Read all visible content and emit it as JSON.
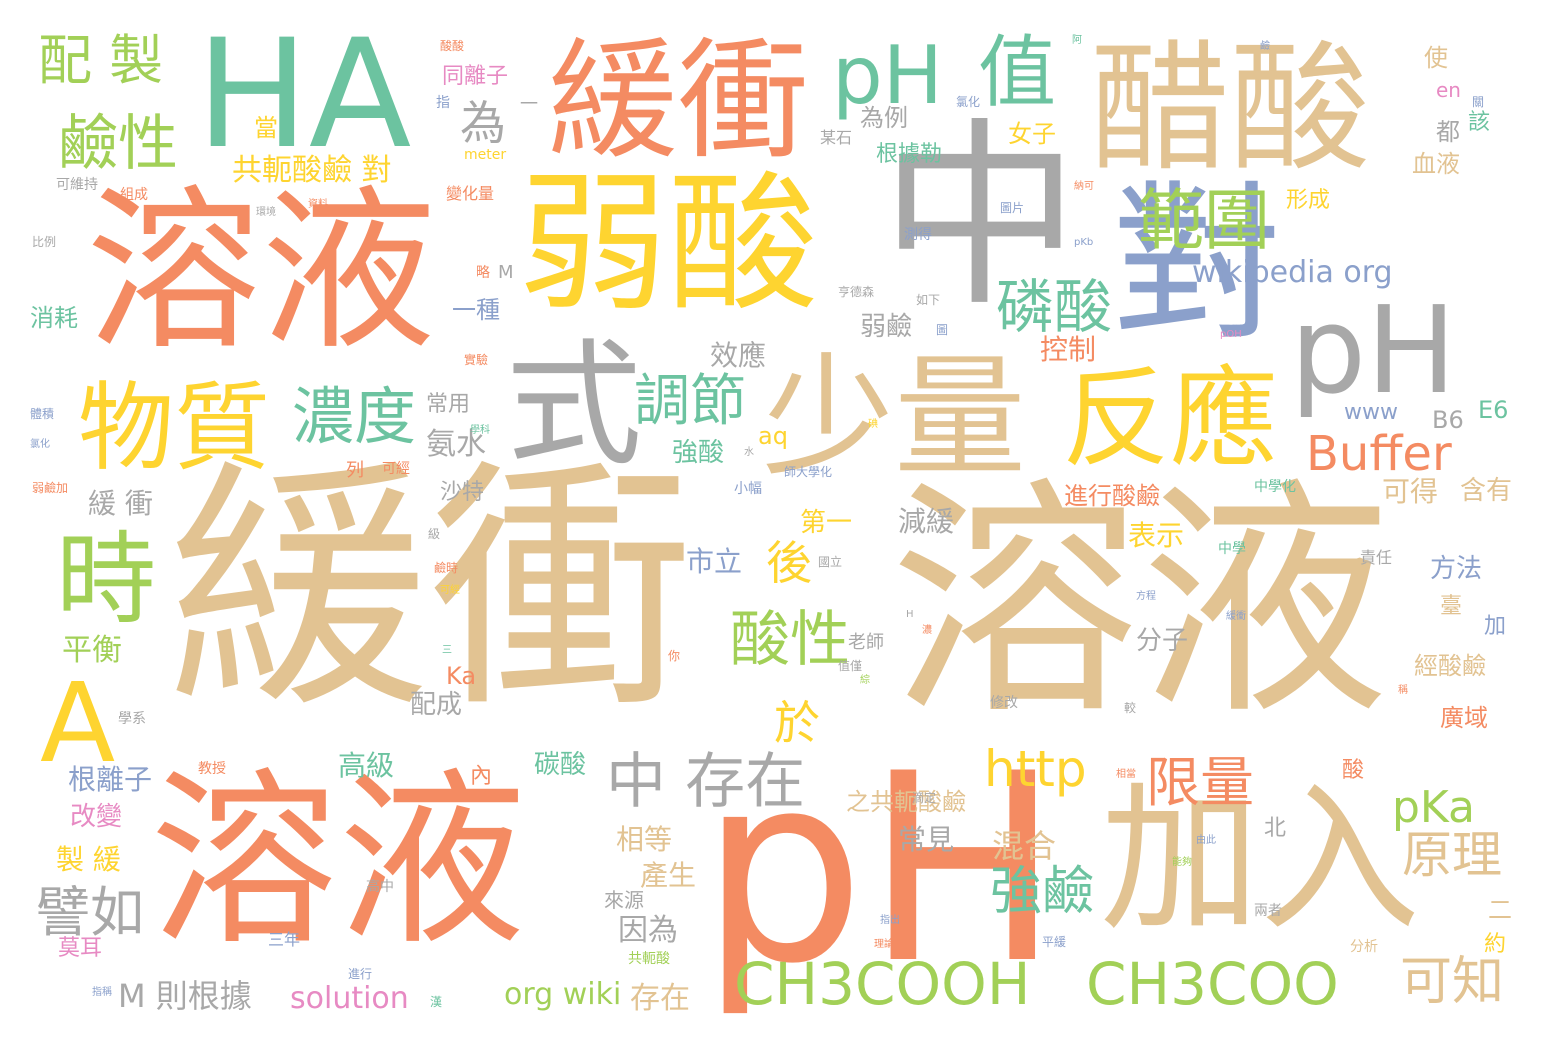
{
  "palette": {
    "orange": "#f48b62",
    "tan": "#e2c392",
    "gray": "#a8a8a8",
    "green": "#a2d057",
    "yellow": "#fed430",
    "teal": "#6cc3a0",
    "blue": "#8ba0cb",
    "pink": "#e78ac3"
  },
  "words": {
    "w0": "緩衝",
    "w1": "溶液",
    "w2": "中",
    "w3": "pH",
    "w4": "溶液",
    "w5": "溶液",
    "w6": "弱酸",
    "w7": "HA",
    "w8": "緩衝",
    "w9": "對",
    "w10": "醋酸",
    "w11": "加入",
    "w12": "少量",
    "w13": "反應",
    "w14": "pH",
    "w15": "式",
    "w16": "物質",
    "w17": "時",
    "w18": "A",
    "w19": "pH",
    "w20": "值",
    "w21": "範圍",
    "w22": "CH3COOH",
    "w23": "CH3COO",
    "w24": "配 製",
    "w25": "鹼性",
    "w26": "濃度",
    "w27": "磷酸",
    "w28": "調節",
    "w29": "酸性",
    "w30": "中 存在",
    "w31": "Buffer",
    "w32": "http",
    "w33": "pKa",
    "w34": "原理",
    "w35": "限量",
    "w36": "譬如",
    "w37": "強鹼",
    "w38": "可知",
    "w39": "後",
    "w40": "於",
    "w41": "為",
    "w42": "共軛酸鹼 對",
    "w43": "wikipedia org",
    "w44": "solution",
    "w45": "org wiki",
    "w46": "M 則根據",
    "w47": "存在",
    "w48": "混合",
    "w49": "平衡",
    "w50": "氨水",
    "w51": "緩 衝",
    "w52": "根離子",
    "w53": "改變",
    "w54": "製 緩",
    "w55": "高級",
    "w56": "配成",
    "w57": "Ka",
    "w58": "因為",
    "w59": "常見",
    "w60": "相等",
    "w61": "產生",
    "w62": "減緩",
    "w63": "碳酸",
    "w64": "市立",
    "w65": "第一",
    "w66": "強酸",
    "w67": "效應",
    "w68": "弱鹼",
    "w69": "控制",
    "w70": "可得",
    "w71": "含有",
    "w72": "方法",
    "w73": "分子",
    "w74": "表示",
    "w75": "經酸鹼",
    "w76": "廣域",
    "w77": "進行酸鹼",
    "w78": "之共軛酸鹼",
    "w79": "www",
    "w80": "B6",
    "w81": "E6",
    "w82": "aq",
    "w83": "一種",
    "w84": "消耗",
    "w85": "同離子",
    "w86": "為例",
    "w87": "根據勒",
    "w88": "女子",
    "w89": "血液",
    "w90": "都",
    "w91": "該",
    "w92": "使",
    "w93": "en",
    "w94": "當",
    "w95": "形成",
    "w96": "常用",
    "w97": "沙特",
    "w98": "內",
    "w99": "酸",
    "w100": "北",
    "w101": "二",
    "w102": "約",
    "w103": "臺",
    "w104": "加",
    "w105": "來源",
    "w106": "莫耳",
    "w107": "三年",
    "w108": "列",
    "w109": "老師",
    "w110": "某石",
    "w111": "meter",
    "w112": "可維持",
    "w113": "變化量",
    "w114": "組成",
    "w115": "比例",
    "w116": "M",
    "w117": "略",
    "w118": "一",
    "w119": "指",
    "w120": "可經",
    "w121": "高中",
    "w122": "共軛酸",
    "w123": "小幅",
    "w124": "中學化",
    "w125": "中學",
    "w126": "責任",
    "w127": "教授",
    "w128": "修改",
    "w129": "兩者",
    "w130": "分析",
    "w131": "進行",
    "w132": "學系",
    "w133": "圖片",
    "w134": "測得",
    "w135": "如下",
    "w136": "亨德森",
    "w137": "氯化",
    "w138": "體積",
    "w139": "pOH",
    "w140": "pKb",
    "w141": "實驗",
    "w142": "平緩",
    "w143": "能夠",
    "w144": "由此",
    "w145": "相當",
    "w146": "滴定",
    "w147": "H",
    "w148": "師大學化",
    "w149": "值僅",
    "w150": "國立",
    "w151": "鹼時",
    "w152": "級",
    "w153": "你",
    "w154": "較",
    "w155": "水",
    "w156": "碘",
    "w157": "弱鹼加",
    "w158": "可經",
    "w159": "濃",
    "w160": "阿",
    "w161": "緩衝",
    "w162": "圖",
    "w163": "納可",
    "w164": "關",
    "w165": "指出",
    "w166": "理論",
    "w167": "學科",
    "w168": "漢",
    "w169": "方程",
    "w170": "綜",
    "w171": "氯化",
    "w172": "稱",
    "w173": "環境",
    "w174": "資料",
    "w175": "指稱",
    "w176": "三",
    "w177": "鹼",
    "w178": "酸酸"
  }
}
